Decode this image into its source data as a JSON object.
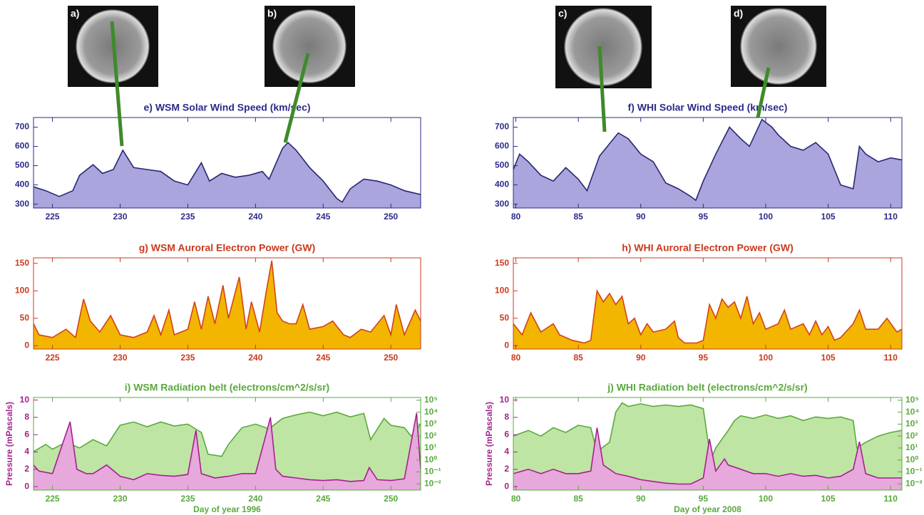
{
  "image_labels": [
    "a)",
    "b)",
    "c)",
    "d)"
  ],
  "chart_data": [
    {
      "type": "area",
      "title": "e) WSM Solar Wind Speed (km/sec)",
      "title_color": "#2b2a8a",
      "axis_color": "#2b2a8a",
      "xlim": [
        223.6,
        252.2
      ],
      "xticks": [
        225,
        230,
        235,
        240,
        245,
        250
      ],
      "ylim": [
        280,
        750
      ],
      "yticks": [
        300,
        400,
        500,
        600,
        700
      ],
      "series": [
        {
          "color": "#272675",
          "fill": "#aaa5dc",
          "x": [
            223.6,
            224.5,
            225.5,
            226.5,
            227,
            228,
            228.7,
            229.5,
            230.2,
            231,
            232,
            233,
            234,
            235,
            236,
            236.6,
            237.5,
            238.5,
            239.5,
            240.5,
            241,
            242,
            242.4,
            243,
            244,
            245,
            246,
            246.4,
            247,
            248,
            249,
            250,
            251,
            252.2
          ],
          "values": [
            390,
            370,
            340,
            370,
            450,
            505,
            460,
            480,
            580,
            490,
            480,
            470,
            420,
            400,
            515,
            420,
            460,
            440,
            450,
            470,
            430,
            590,
            620,
            580,
            490,
            420,
            330,
            310,
            380,
            430,
            420,
            400,
            370,
            350
          ]
        }
      ]
    },
    {
      "type": "area",
      "title": "f) WHI Solar Wind Speed (km/sec)",
      "title_color": "#2b2a8a",
      "axis_color": "#2b2a8a",
      "xlim": [
        79.8,
        110.9
      ],
      "xticks": [
        80,
        85,
        90,
        95,
        100,
        105,
        110
      ],
      "ylim": [
        280,
        750
      ],
      "yticks": [
        300,
        400,
        500,
        600,
        700
      ],
      "series": [
        {
          "color": "#272675",
          "fill": "#aaa5dc",
          "x": [
            79.8,
            80.3,
            81,
            82,
            83,
            84,
            85,
            85.7,
            86.7,
            88.2,
            89,
            90,
            91,
            92,
            93,
            94,
            94.4,
            95,
            96,
            97.1,
            98,
            98.7,
            99.7,
            100.5,
            101,
            102,
            103,
            104,
            105,
            106,
            107,
            107.5,
            108,
            109,
            110,
            110.9
          ],
          "values": [
            480,
            560,
            520,
            450,
            420,
            490,
            430,
            370,
            550,
            670,
            640,
            560,
            520,
            410,
            380,
            340,
            320,
            420,
            560,
            700,
            640,
            600,
            740,
            700,
            660,
            600,
            580,
            620,
            560,
            400,
            380,
            600,
            560,
            520,
            540,
            530
          ]
        }
      ]
    },
    {
      "type": "area",
      "title": "g) WSM Auroral Electron Power (GW)",
      "title_color": "#c93a1e",
      "axis_color": "#c93a1e",
      "xlim": [
        223.6,
        252.2
      ],
      "xticks": [
        225,
        230,
        235,
        240,
        245,
        250
      ],
      "ylim": [
        -6,
        160
      ],
      "yticks": [
        0,
        50,
        100,
        150
      ],
      "series": [
        {
          "color": "#d2421c",
          "fill": "#f2b500",
          "x": [
            223.6,
            224,
            225,
            226,
            226.7,
            227.3,
            227.8,
            228.5,
            229.3,
            230,
            231,
            232,
            232.5,
            233,
            233.6,
            234,
            235,
            235.5,
            236,
            236.5,
            237,
            237.6,
            238,
            238.8,
            239.3,
            239.7,
            240.3,
            240.8,
            241.2,
            241.6,
            242,
            242.5,
            243,
            243.5,
            244,
            245,
            245.7,
            246.5,
            247,
            247.8,
            248.5,
            249.5,
            250,
            250.4,
            251,
            251.8,
            252.2
          ],
          "values": [
            40,
            20,
            15,
            30,
            15,
            85,
            45,
            25,
            55,
            20,
            15,
            25,
            55,
            20,
            65,
            20,
            30,
            80,
            30,
            90,
            40,
            110,
            50,
            125,
            30,
            80,
            25,
            100,
            155,
            60,
            45,
            40,
            40,
            75,
            30,
            35,
            45,
            20,
            15,
            30,
            25,
            55,
            20,
            75,
            20,
            65,
            45
          ]
        }
      ]
    },
    {
      "type": "area",
      "title": "h) WHI Auroral Electron Power (GW)",
      "title_color": "#c93a1e",
      "axis_color": "#c93a1e",
      "xlim": [
        79.8,
        110.9
      ],
      "xticks": [
        80,
        85,
        90,
        95,
        100,
        105,
        110
      ],
      "ylim": [
        -6,
        160
      ],
      "yticks": [
        0,
        50,
        100,
        150
      ],
      "series": [
        {
          "color": "#d2421c",
          "fill": "#f2b500",
          "x": [
            79.8,
            80.5,
            81.2,
            82,
            83,
            83.5,
            84.5,
            85.5,
            86,
            86.5,
            87,
            87.5,
            88,
            88.5,
            89,
            89.5,
            90,
            90.5,
            91,
            92,
            92.7,
            93,
            93.5,
            94.5,
            95,
            95.5,
            96,
            96.5,
            97,
            97.5,
            98,
            98.5,
            99,
            99.5,
            100,
            101,
            101.5,
            102,
            103,
            103.5,
            104,
            104.5,
            105,
            105.5,
            106,
            107,
            107.5,
            108,
            109,
            109.7,
            110.5,
            110.9
          ],
          "values": [
            40,
            20,
            60,
            25,
            40,
            20,
            10,
            5,
            10,
            100,
            80,
            95,
            75,
            90,
            40,
            50,
            20,
            40,
            25,
            30,
            45,
            15,
            5,
            5,
            10,
            75,
            50,
            85,
            70,
            80,
            50,
            90,
            40,
            60,
            30,
            40,
            65,
            30,
            40,
            20,
            45,
            20,
            35,
            10,
            15,
            40,
            65,
            30,
            30,
            50,
            25,
            30
          ]
        }
      ]
    },
    {
      "type": "area",
      "title": "i) WSM Radiation belt (electrons/cm^2/s/sr)",
      "title_color": "#5aa83e",
      "axis_color": "#5aa83e",
      "xlabel": "Day of year 1996",
      "ylabel": "Pressure (mPascals)",
      "xlim": [
        223.6,
        252.2
      ],
      "xticks": [
        225,
        230,
        235,
        240,
        245,
        250
      ],
      "ylim": [
        -0.4,
        10.3
      ],
      "yticks": [
        0,
        2,
        4,
        6,
        8,
        10
      ],
      "y2log": true,
      "y2lim": [
        0.003,
        170000
      ],
      "y2ticks": [
        {
          "value": 0.01,
          "label": "10⁻²"
        },
        {
          "value": 0.1,
          "label": "10⁻¹"
        },
        {
          "value": 1,
          "label": "10⁰"
        },
        {
          "value": 10,
          "label": "10¹"
        },
        {
          "value": 100,
          "label": "10²"
        },
        {
          "value": 1000,
          "label": "10³"
        },
        {
          "value": 10000,
          "label": "10⁴"
        },
        {
          "value": 100000,
          "label": "10⁵"
        }
      ],
      "series": [
        {
          "color": "#a6208f",
          "fill": "#e7a8dc",
          "x": [
            223.6,
            224,
            225,
            226.3,
            226.8,
            227.5,
            228,
            229,
            230,
            231,
            232,
            233,
            234,
            235,
            235.6,
            236,
            237,
            238,
            239,
            240,
            240.6,
            241.1,
            241.5,
            242,
            243,
            244,
            245,
            246,
            247,
            248,
            248.4,
            249,
            250,
            251,
            251.9,
            252.2
          ],
          "values": [
            2.5,
            1.8,
            1.5,
            7.5,
            2,
            1.5,
            1.5,
            2.5,
            1.2,
            0.8,
            1.5,
            1.3,
            1.2,
            1.4,
            6.5,
            1.5,
            1,
            1.2,
            1.5,
            1.5,
            5,
            8,
            2,
            1.2,
            1,
            0.8,
            0.7,
            0.8,
            0.6,
            0.7,
            2.2,
            0.8,
            0.7,
            0.9,
            8.5,
            2
          ]
        },
        {
          "color": "#5aaa3a",
          "fill": "#bfe5a5",
          "axis": "y2",
          "x": [
            223.6,
            224.5,
            225,
            226,
            227,
            228,
            229,
            230,
            231,
            232,
            233,
            234,
            235,
            236,
            236.5,
            237.5,
            238,
            239,
            240,
            241,
            242,
            243,
            244,
            245,
            246,
            247,
            248,
            248.5,
            249.5,
            250,
            251,
            251.5,
            252.2
          ],
          "values": [
            5,
            20,
            8,
            30,
            10,
            50,
            15,
            800,
            1500,
            600,
            1500,
            700,
            1000,
            200,
            3,
            2,
            20,
            500,
            1000,
            400,
            3000,
            6000,
            10000,
            5000,
            10000,
            4000,
            8000,
            50,
            3000,
            800,
            500,
            100,
            1000
          ]
        }
      ]
    },
    {
      "type": "area",
      "title": "j) WHI Radiation belt (electrons/cm^2/s/sr)",
      "title_color": "#5aa83e",
      "axis_color": "#5aa83e",
      "xlabel": "Day of year 2008",
      "ylabel": "Pressure (mPascals)",
      "xlim": [
        79.8,
        110.9
      ],
      "xticks": [
        80,
        85,
        90,
        95,
        100,
        105,
        110
      ],
      "ylim": [
        -0.4,
        10.3
      ],
      "yticks": [
        0,
        2,
        4,
        6,
        8,
        10
      ],
      "y2log": true,
      "y2lim": [
        0.003,
        170000
      ],
      "y2ticks": [
        {
          "value": 0.01,
          "label": "10⁻²"
        },
        {
          "value": 0.1,
          "label": "10⁻¹"
        },
        {
          "value": 1,
          "label": "10⁰"
        },
        {
          "value": 10,
          "label": "10¹"
        },
        {
          "value": 100,
          "label": "10²"
        },
        {
          "value": 1000,
          "label": "10³"
        },
        {
          "value": 10000,
          "label": "10⁴"
        },
        {
          "value": 100000,
          "label": "10⁵"
        }
      ],
      "series": [
        {
          "color": "#a6208f",
          "fill": "#e7a8dc",
          "x": [
            79.8,
            81,
            82,
            83,
            84,
            85,
            86,
            86.5,
            87,
            88,
            89,
            90,
            91,
            92,
            93,
            94,
            95,
            95.5,
            96,
            96.7,
            97,
            98,
            99,
            100,
            101,
            102,
            103,
            104,
            105,
            106,
            107,
            107.5,
            108,
            109,
            110,
            110.9
          ],
          "values": [
            1.5,
            2,
            1.5,
            2,
            1.5,
            1.5,
            1.8,
            6.8,
            2.5,
            1.5,
            1.2,
            0.8,
            0.6,
            0.4,
            0.3,
            0.3,
            1,
            5.5,
            1.8,
            3.2,
            2.5,
            2,
            1.5,
            1.5,
            1.2,
            1.5,
            1.2,
            1.3,
            1,
            1.2,
            2,
            5.2,
            1.5,
            1,
            1,
            1
          ]
        },
        {
          "color": "#5aaa3a",
          "fill": "#bfe5a5",
          "axis": "y2",
          "x": [
            79.8,
            81,
            82,
            83,
            84,
            85,
            86,
            86.5,
            87.5,
            88,
            88.5,
            89,
            90,
            91,
            92,
            93,
            94,
            95,
            95.6,
            96,
            97,
            97.5,
            98,
            99,
            100,
            101,
            102,
            103,
            104,
            105,
            106,
            107,
            107.3,
            108,
            109,
            110,
            110.9
          ],
          "values": [
            100,
            300,
            100,
            500,
            200,
            800,
            500,
            5,
            30,
            10000,
            60000,
            30000,
            50000,
            30000,
            40000,
            30000,
            40000,
            20000,
            1,
            10,
            300,
            2000,
            5000,
            3000,
            6000,
            3000,
            5000,
            2000,
            4000,
            3000,
            4000,
            2000,
            10,
            30,
            100,
            200,
            300
          ]
        }
      ]
    }
  ]
}
